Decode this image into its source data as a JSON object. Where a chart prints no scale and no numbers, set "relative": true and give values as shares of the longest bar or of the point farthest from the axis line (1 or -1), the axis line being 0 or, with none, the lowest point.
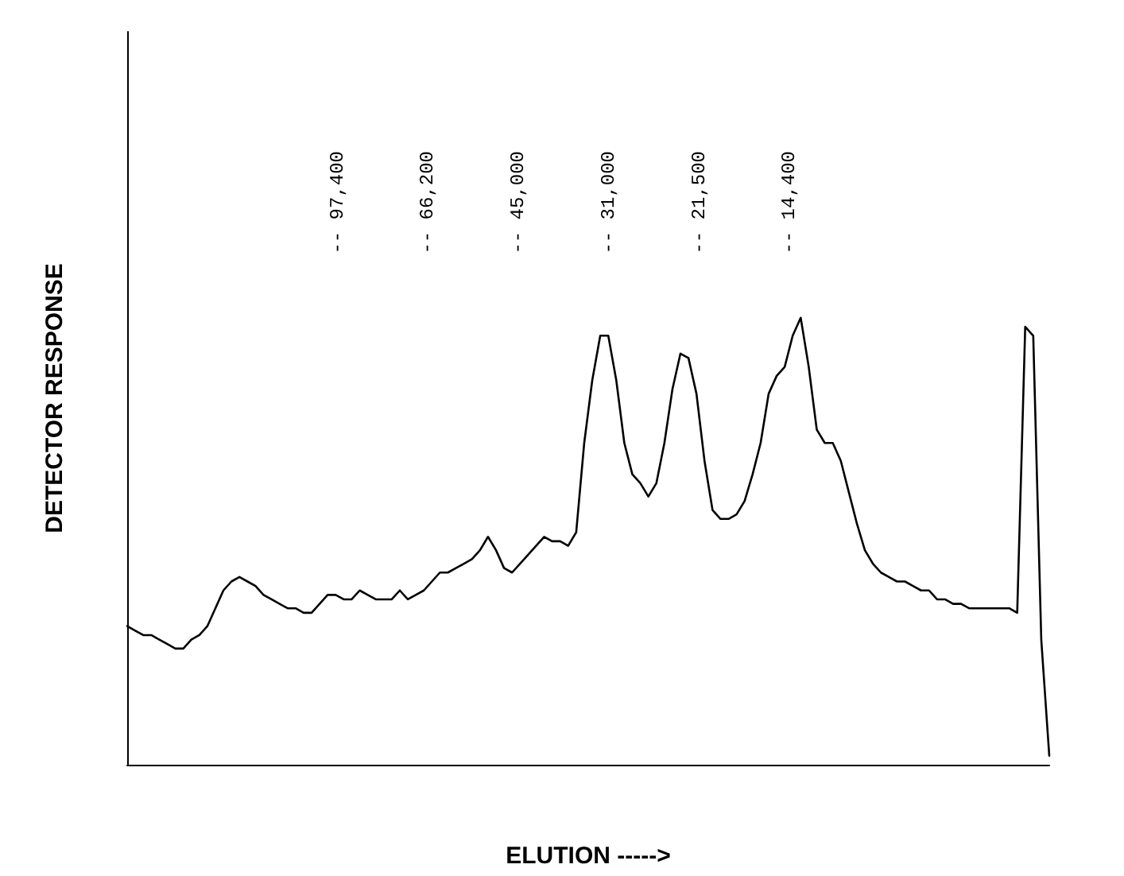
{
  "chart_data": {
    "type": "line",
    "relative": true,
    "xlabel": "ELUTION ----->",
    "ylabel": "DETECTOR RESPONSE",
    "annotations": [
      "-- 97,400",
      "-- 66,200",
      "-- 45,000",
      "-- 31,000",
      "-- 21,500",
      "-- 14,400"
    ],
    "categories": [
      null,
      null,
      null,
      null,
      null,
      null,
      null,
      null,
      null,
      null,
      null,
      null,
      null,
      null,
      null,
      null,
      null,
      null,
      null,
      null,
      null,
      null,
      null,
      null,
      null,
      null,
      null,
      null,
      null,
      null,
      null,
      null,
      null,
      null,
      null,
      null,
      null,
      null,
      null,
      null,
      null,
      null,
      null,
      null,
      null,
      null,
      null,
      null,
      null,
      null,
      null,
      null,
      null,
      null,
      null,
      null,
      null,
      null,
      null,
      null,
      null,
      null,
      null,
      null,
      null,
      null,
      null,
      null,
      null,
      null,
      null,
      null,
      null,
      null,
      null,
      null,
      null,
      null,
      null,
      null,
      null,
      null,
      null,
      null,
      null,
      null,
      null,
      null,
      null,
      null,
      null,
      null,
      null,
      null,
      null,
      null,
      null,
      null,
      null,
      null,
      null,
      null,
      null,
      null,
      null,
      null,
      null,
      null,
      null,
      null,
      null,
      null,
      null,
      null,
      null,
      null
    ],
    "series": [
      {
        "color": "#000000",
        "values": [
          0.31,
          0.3,
          0.29,
          0.29,
          0.28,
          0.27,
          0.26,
          0.26,
          0.28,
          0.29,
          0.31,
          0.35,
          0.39,
          0.41,
          0.42,
          0.41,
          0.4,
          0.38,
          0.37,
          0.36,
          0.35,
          0.35,
          0.34,
          0.34,
          0.36,
          0.38,
          0.38,
          0.37,
          0.37,
          0.39,
          0.38,
          0.37,
          0.37,
          0.37,
          0.39,
          0.37,
          0.38,
          0.39,
          0.41,
          0.43,
          0.43,
          0.44,
          0.45,
          0.46,
          0.48,
          0.51,
          0.48,
          0.44,
          0.43,
          0.45,
          0.47,
          0.49,
          0.51,
          0.5,
          0.5,
          0.49,
          0.52,
          0.72,
          0.86,
          0.96,
          0.96,
          0.86,
          0.72,
          0.65,
          0.63,
          0.6,
          0.63,
          0.72,
          0.84,
          0.92,
          0.91,
          0.83,
          0.68,
          0.57,
          0.55,
          0.55,
          0.56,
          0.59,
          0.65,
          0.72,
          0.83,
          0.87,
          0.89,
          0.96,
          1,
          0.89,
          0.75,
          0.72,
          0.72,
          0.68,
          0.61,
          0.54,
          0.48,
          0.45,
          0.43,
          0.42,
          0.41,
          0.41,
          0.4,
          0.39,
          0.39,
          0.37,
          0.37,
          0.36,
          0.36,
          0.35,
          0.35,
          0.35,
          0.35,
          0.35,
          0.35,
          0.34,
          0.98,
          0.96,
          0.28,
          0.02
        ]
      }
    ],
    "line_style": "solid",
    "grid": false
  }
}
